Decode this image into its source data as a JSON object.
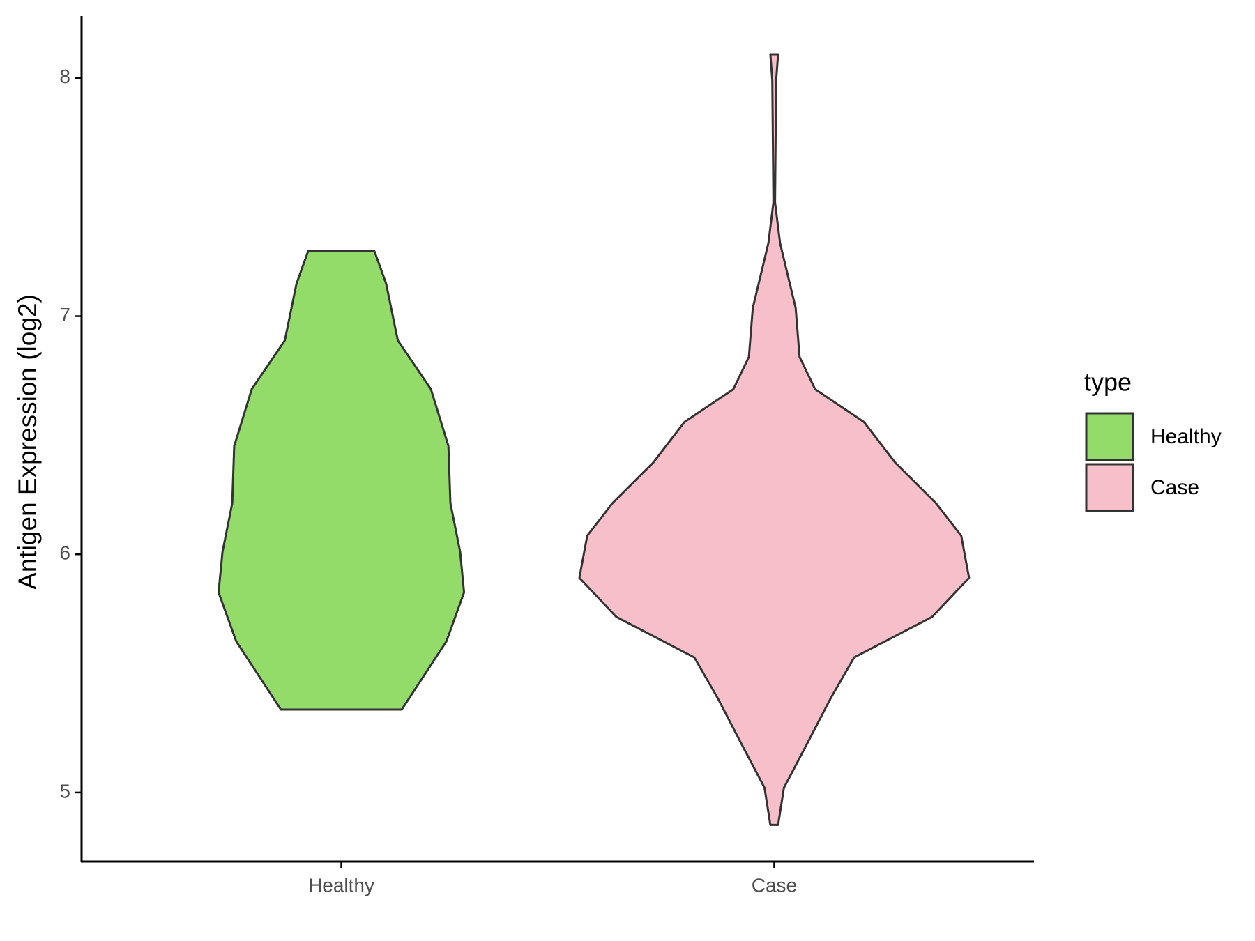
{
  "chart_data": {
    "type": "violin",
    "y_label": "Antigen Expression (log2)",
    "categories": [
      "Healthy",
      "Case"
    ],
    "legend_title": "type",
    "legend_position": "right",
    "ylim": [
      4.71,
      8.26
    ],
    "yticks": [
      5,
      6,
      7,
      8
    ],
    "series": [
      {
        "name": "Healthy",
        "color": "#93dc6a",
        "y": [
          7.273,
          7.137,
          6.898,
          6.693,
          6.454,
          6.215,
          6.01,
          5.84,
          5.635,
          5.348
        ],
        "width": [
          0.17,
          0.23,
          0.29,
          0.46,
          0.55,
          0.56,
          0.61,
          0.63,
          0.54,
          0.31
        ]
      },
      {
        "name": "Case",
        "color": "#f7bfca",
        "y": [
          8.099,
          7.99,
          7.478,
          7.307,
          7.034,
          6.829,
          6.693,
          6.556,
          6.386,
          6.215,
          6.078,
          5.901,
          5.737,
          5.567,
          5.396,
          5.191,
          5.02,
          4.864
        ],
        "width": [
          0.02,
          0.01,
          0.004,
          0.03,
          0.11,
          0.13,
          0.21,
          0.46,
          0.62,
          0.83,
          0.96,
          1.0,
          0.81,
          0.41,
          0.29,
          0.16,
          0.05,
          0.02
        ]
      }
    ]
  }
}
